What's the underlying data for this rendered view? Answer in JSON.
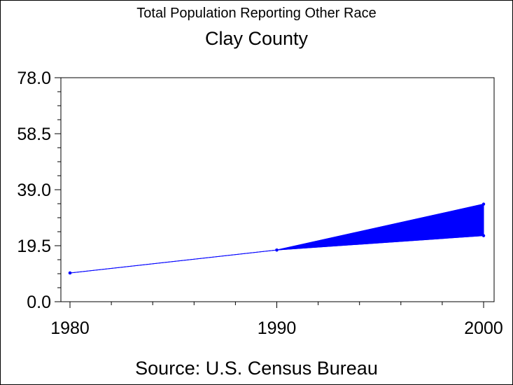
{
  "chart_data": {
    "type": "line",
    "title": "Total Population Reporting Other Race",
    "subtitle": "Clay County",
    "source": "Source: U.S. Census Bureau",
    "x": [
      1980,
      1990,
      2000
    ],
    "x_tick_labels": [
      "1980",
      "1990",
      "2000"
    ],
    "y_tick_values": [
      0.0,
      19.5,
      39.0,
      58.5,
      78.0
    ],
    "y_tick_labels": [
      "0.0",
      "19.5",
      "39.0",
      "58.5",
      "78.0"
    ],
    "ylim": [
      0,
      78
    ],
    "xlim": [
      1980,
      2000
    ],
    "series": [
      {
        "values": [
          10,
          18,
          23
        ]
      },
      {
        "values": [
          10,
          18,
          34
        ]
      }
    ],
    "shaded_range": {
      "from_x": 1990,
      "to_x": 2000,
      "lower": [
        18,
        23
      ],
      "upper": [
        18,
        34
      ]
    },
    "grid": false,
    "colors": {
      "line": "#0000ff",
      "fill": "#0000ff",
      "axis": "#000000"
    }
  }
}
